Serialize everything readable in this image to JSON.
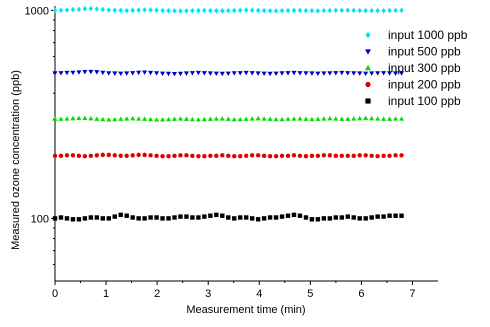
{
  "chart_data": {
    "type": "scatter",
    "title": "",
    "xlabel": "Measurement time (min)",
    "ylabel": "Measured ozone concentration (ppb)",
    "xlim": [
      0,
      7.5
    ],
    "ylim": [
      50,
      1050
    ],
    "yscale": "log",
    "x_ticks": [
      0,
      1,
      2,
      3,
      4,
      5,
      6,
      7
    ],
    "x_tick_labels": [
      "0",
      "1",
      "2",
      "3",
      "4",
      "5",
      "6",
      "7"
    ],
    "y_major_ticks": [
      100,
      1000
    ],
    "y_tick_labels": [
      "100",
      "1000"
    ],
    "grid": false,
    "legend_position": "right",
    "series": [
      {
        "name": "input 1000 ppb",
        "color": "#00e5ee",
        "marker": "diamond",
        "y": [
          1000,
          1002,
          1005,
          1008,
          1012,
          1018,
          1020,
          1016,
          1010,
          1004,
          1002,
          1000,
          998,
          1000,
          1003,
          1006,
          1005,
          1002,
          999,
          997,
          995,
          994,
          995,
          997,
          999,
          1000,
          998,
          996,
          995,
          997,
          999,
          1001,
          1003,
          1002,
          1000,
          998,
          996,
          995,
          997,
          999,
          1001,
          1000,
          998,
          996,
          995,
          997,
          999,
          1000,
          1001,
          1002,
          1000,
          999,
          998,
          997,
          996,
          997,
          999,
          1000,
          1000
        ]
      },
      {
        "name": "input 500 ppb",
        "color": "#0000cd",
        "marker": "triangle-down",
        "y": [
          500,
          501,
          502,
          503,
          505,
          507,
          508,
          506,
          503,
          500,
          499,
          498,
          499,
          501,
          503,
          504,
          502,
          500,
          498,
          497,
          496,
          497,
          499,
          501,
          502,
          501,
          499,
          498,
          497,
          498,
          500,
          501,
          502,
          501,
          499,
          498,
          497,
          498,
          500,
          501,
          502,
          501,
          500,
          499,
          498,
          499,
          500,
          501,
          502,
          501,
          500,
          499,
          498,
          499,
          500,
          501,
          500,
          499,
          500
        ]
      },
      {
        "name": "input 300 ppb",
        "color": "#00dd00",
        "marker": "triangle-up",
        "y": [
          300,
          300,
          301,
          302,
          303,
          303,
          302,
          300,
          299,
          298,
          299,
          300,
          301,
          302,
          301,
          300,
          299,
          298,
          298,
          299,
          300,
          301,
          300,
          299,
          298,
          299,
          300,
          301,
          301,
          300,
          299,
          299,
          300,
          301,
          302,
          301,
          300,
          299,
          299,
          300,
          301,
          301,
          300,
          299,
          300,
          301,
          302,
          301,
          300,
          300,
          301,
          302,
          303,
          302,
          301,
          300,
          300,
          301,
          301
        ]
      },
      {
        "name": "input 200 ppb",
        "color": "#e00000",
        "marker": "circle",
        "y": [
          200,
          200,
          201,
          201,
          200,
          199,
          200,
          201,
          202,
          202,
          201,
          200,
          200,
          201,
          202,
          202,
          201,
          200,
          199,
          199,
          200,
          201,
          201,
          200,
          199,
          199,
          200,
          200,
          201,
          200,
          199,
          199,
          200,
          201,
          201,
          200,
          199,
          199,
          200,
          200,
          201,
          200,
          199,
          200,
          200,
          201,
          201,
          200,
          200,
          200,
          200,
          201,
          201,
          200,
          199,
          200,
          200,
          201,
          201
        ]
      },
      {
        "name": "input 100 ppb",
        "color": "#000000",
        "marker": "square",
        "y": [
          100,
          101,
          100,
          99,
          99,
          100,
          101,
          101,
          100,
          100,
          102,
          104,
          103,
          101,
          100,
          100,
          101,
          101,
          100,
          100,
          101,
          102,
          102,
          101,
          101,
          102,
          103,
          104,
          103,
          101,
          100,
          101,
          101,
          100,
          99,
          100,
          101,
          101,
          102,
          103,
          104,
          103,
          101,
          99,
          99,
          100,
          100,
          101,
          101,
          102,
          101,
          100,
          100,
          101,
          102,
          102,
          103,
          103,
          103
        ]
      }
    ],
    "x_start": 0,
    "x_step": 0.117
  }
}
